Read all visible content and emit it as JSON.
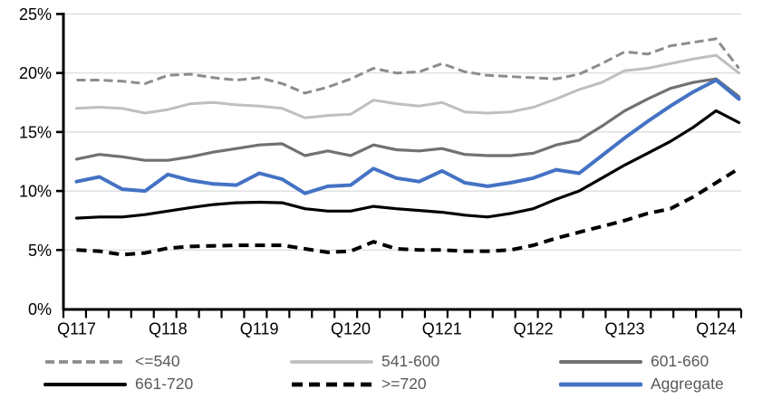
{
  "chart_data": {
    "type": "line",
    "title": "",
    "grid": true,
    "legend_position": "bottom",
    "x_axis": {
      "visible_labels": [
        "Q117",
        "Q118",
        "Q119",
        "Q120",
        "Q121",
        "Q122",
        "Q123",
        "Q124"
      ],
      "label_every_n_points": 4,
      "n_points": 30,
      "x_points": [
        "Q117",
        "Q217",
        "Q317",
        "Q417",
        "Q118",
        "Q218",
        "Q318",
        "Q418",
        "Q119",
        "Q219",
        "Q319",
        "Q419",
        "Q120",
        "Q220",
        "Q320",
        "Q420",
        "Q121",
        "Q221",
        "Q321",
        "Q421",
        "Q122",
        "Q222",
        "Q322",
        "Q422",
        "Q123",
        "Q223",
        "Q323",
        "Q423",
        "Q124",
        "Q224"
      ]
    },
    "y_axis": {
      "min": 0,
      "max": 25,
      "step": 5,
      "tick_labels": [
        "0%",
        "5%",
        "10%",
        "15%",
        "20%",
        "25%"
      ],
      "format": "percent"
    },
    "colors": {
      "gridline": "#D9D9D9",
      "axis": "#000000",
      "axis_text": "#000000",
      "legend_text": "#595959"
    },
    "series": [
      {
        "label": "<=540",
        "color": "#8C8C8C",
        "style": "dashed",
        "width": 3,
        "values": [
          19.4,
          19.4,
          19.3,
          19.1,
          19.8,
          19.9,
          19.6,
          19.4,
          19.6,
          19.1,
          18.3,
          18.8,
          19.5,
          20.4,
          20.0,
          20.1,
          20.8,
          20.1,
          19.8,
          19.7,
          19.6,
          19.5,
          19.9,
          20.8,
          21.8,
          21.6,
          22.3,
          22.6,
          22.9,
          20.4
        ]
      },
      {
        "label": "541-600",
        "color": "#BFBFBF",
        "style": "solid",
        "width": 3,
        "values": [
          17.0,
          17.1,
          17.0,
          16.6,
          16.9,
          17.4,
          17.5,
          17.3,
          17.2,
          17.0,
          16.2,
          16.4,
          16.5,
          17.7,
          17.4,
          17.2,
          17.5,
          16.7,
          16.6,
          16.7,
          17.1,
          17.8,
          18.6,
          19.2,
          20.2,
          20.4,
          20.8,
          21.2,
          21.5,
          20.0
        ]
      },
      {
        "label": "601-660",
        "color": "#717171",
        "style": "solid",
        "width": 3.2,
        "values": [
          12.7,
          13.1,
          12.9,
          12.6,
          12.6,
          12.9,
          13.3,
          13.6,
          13.9,
          14.0,
          13.0,
          13.4,
          13.0,
          13.9,
          13.5,
          13.4,
          13.6,
          13.1,
          13.0,
          13.0,
          13.2,
          13.9,
          14.3,
          15.5,
          16.8,
          17.8,
          18.7,
          19.2,
          19.5,
          18.0
        ]
      },
      {
        "label": "661-720",
        "color": "#000000",
        "style": "solid",
        "width": 3.2,
        "values": [
          7.7,
          7.8,
          7.8,
          8.0,
          8.3,
          8.6,
          8.85,
          9.0,
          9.05,
          9.0,
          8.5,
          8.3,
          8.3,
          8.7,
          8.5,
          8.35,
          8.2,
          7.95,
          7.8,
          8.1,
          8.5,
          9.3,
          10.0,
          11.1,
          12.2,
          13.2,
          14.2,
          15.4,
          16.8,
          15.8
        ]
      },
      {
        "label": ">=720",
        "color": "#000000",
        "style": "dashed",
        "width": 4,
        "values": [
          5.0,
          4.9,
          4.6,
          4.75,
          5.15,
          5.3,
          5.35,
          5.4,
          5.4,
          5.4,
          5.1,
          4.8,
          4.9,
          5.7,
          5.1,
          5.0,
          5.0,
          4.9,
          4.9,
          5.0,
          5.4,
          6.0,
          6.5,
          7.0,
          7.5,
          8.1,
          8.5,
          9.5,
          10.7,
          11.9
        ]
      },
      {
        "label": "Aggregate",
        "color": "#4472C4",
        "style": "solid",
        "width": 4,
        "values": [
          10.8,
          11.2,
          10.15,
          10.0,
          11.4,
          10.9,
          10.6,
          10.5,
          11.5,
          11.0,
          9.8,
          10.4,
          10.5,
          11.9,
          11.1,
          10.8,
          11.7,
          10.7,
          10.4,
          10.7,
          11.1,
          11.8,
          11.5,
          13.0,
          14.5,
          15.9,
          17.2,
          18.4,
          19.4,
          17.8
        ]
      }
    ],
    "legend_rows": [
      [
        0,
        1,
        2
      ],
      [
        3,
        4,
        5
      ]
    ]
  }
}
